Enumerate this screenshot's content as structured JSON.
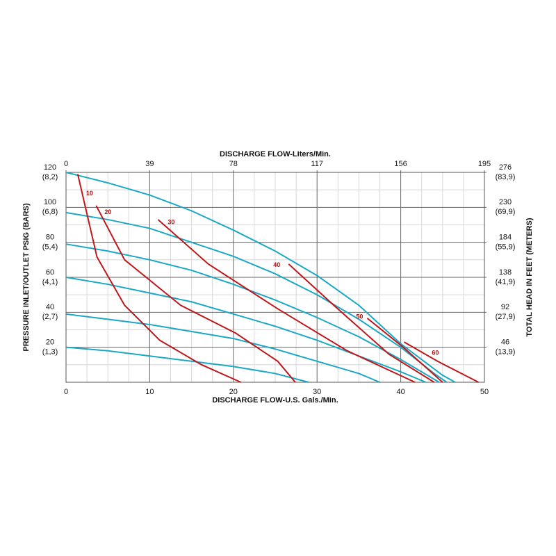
{
  "chart_data": {
    "type": "line",
    "title_top": "DISCHARGE FLOW-Liters/Min.",
    "xlabel": "DISCHARGE FLOW-U.S. Gals./Min.",
    "ylabel": "PRESSURE INLET/OUTLET PSIG (BARS)",
    "y2label": "TOTAL HEAD IN FEET (METERS)",
    "xlim": [
      0,
      50
    ],
    "xticks": [
      0,
      10,
      20,
      30,
      40,
      50
    ],
    "x2lim": [
      0,
      195
    ],
    "x2ticks": [
      0,
      39,
      78,
      117,
      156,
      195
    ],
    "ylim": [
      0,
      120
    ],
    "yticks": [
      20,
      40,
      60,
      80,
      100,
      120
    ],
    "ytick_sublabels": [
      "(1,3)",
      "(2,7)",
      "(4,1)",
      "(5,4)",
      "(6,8)",
      "(8,2)"
    ],
    "y2lim": [
      0,
      276
    ],
    "y2ticks": [
      46,
      92,
      138,
      184,
      230,
      276
    ],
    "y2tick_sublabels": [
      "(13,9)",
      "(27,9)",
      "(41,9)",
      "(55,9)",
      "(69,9)",
      "(83,9)"
    ],
    "x_minor_ticks": [
      2.5,
      5,
      7.5,
      12.5,
      15,
      17.5,
      22.5,
      25,
      27.5,
      32.5,
      35,
      37.5,
      42.5,
      45,
      47.5
    ],
    "y_minor_ticks": [
      10,
      30,
      50,
      70,
      90,
      110
    ],
    "grid": true,
    "series": [
      {
        "color": "#1aa8c4",
        "x": [
          0,
          5,
          10,
          15,
          20,
          25,
          30,
          35,
          40,
          45,
          46.5
        ],
        "values": [
          120,
          114,
          107,
          98,
          87,
          75,
          61,
          44,
          22,
          4,
          0
        ]
      },
      {
        "color": "#1aa8c4",
        "x": [
          0,
          5,
          10,
          15,
          20,
          25,
          30,
          35,
          40,
          44,
          45.5
        ],
        "values": [
          97,
          93,
          88,
          80,
          72,
          62,
          50,
          36,
          20,
          5,
          0
        ]
      },
      {
        "color": "#1aa8c4",
        "x": [
          0,
          5,
          10,
          15,
          20,
          25,
          30,
          35,
          40,
          44.6
        ],
        "values": [
          79,
          75,
          70,
          64,
          56,
          47,
          37,
          26,
          13,
          0
        ]
      },
      {
        "color": "#1aa8c4",
        "x": [
          0,
          5,
          10,
          15,
          20,
          25,
          30,
          35,
          40,
          43
        ],
        "values": [
          60,
          56,
          51,
          46,
          39,
          32,
          24,
          15,
          6,
          0
        ]
      },
      {
        "color": "#1aa8c4",
        "x": [
          0,
          5,
          10,
          15,
          20,
          25,
          30,
          35,
          37.5
        ],
        "values": [
          39,
          36,
          33,
          29,
          25,
          19,
          12,
          5,
          0
        ]
      },
      {
        "color": "#1aa8c4",
        "x": [
          0,
          5,
          10,
          15,
          20,
          25,
          29
        ],
        "values": [
          20,
          18,
          15,
          12,
          9,
          5,
          0
        ]
      },
      {
        "name": "10",
        "color": "#c0161a",
        "x": [
          1.4,
          3.7,
          7,
          11.2,
          16.2,
          20.9
        ],
        "values": [
          119,
          71.6,
          44,
          24,
          10,
          0
        ]
      },
      {
        "name": "20",
        "color": "#c0161a",
        "x": [
          3.6,
          7,
          13.7,
          20.3,
          25.3,
          27.4
        ],
        "values": [
          101,
          70,
          44,
          28,
          12,
          0
        ]
      },
      {
        "name": "30",
        "color": "#c0161a",
        "x": [
          11,
          17,
          25.3,
          33.6,
          41.7
        ],
        "values": [
          93,
          67.6,
          42,
          18,
          0
        ]
      },
      {
        "name": "40",
        "color": "#c0161a",
        "x": [
          26.6,
          32,
          38.6,
          44
        ],
        "values": [
          67.6,
          44,
          16,
          0
        ]
      },
      {
        "name": "50",
        "color": "#c0161a",
        "x": [
          36,
          40.3,
          45
        ],
        "values": [
          36.6,
          20,
          0
        ]
      },
      {
        "name": "60",
        "color": "#c0161a",
        "x": [
          40.4,
          44.4,
          49.3
        ],
        "values": [
          23,
          12,
          0
        ]
      }
    ]
  }
}
